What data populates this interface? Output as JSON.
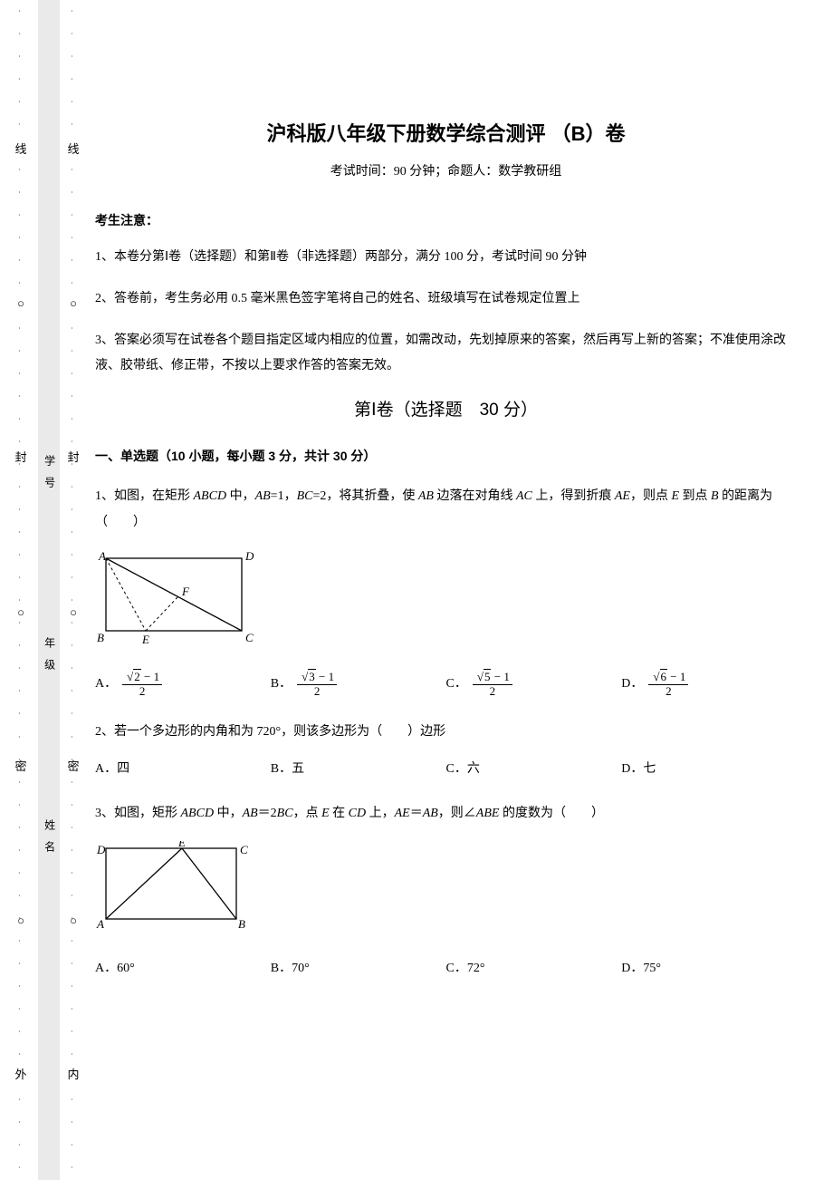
{
  "margin": {
    "outer_chars": [
      "线",
      "○",
      "封",
      "○",
      "密",
      "○",
      "外"
    ],
    "inner_chars": [
      "线",
      "○",
      "封",
      "○",
      "密",
      "○",
      "内"
    ],
    "gray_labels": [
      "学　号",
      "年　级",
      "姓　名"
    ]
  },
  "header": {
    "title": "沪科版八年级下册数学综合测评 （B）卷",
    "subtitle": "考试时间：90 分钟；命题人：数学教研组"
  },
  "notice": {
    "heading": "考生注意：",
    "items": [
      "1、本卷分第Ⅰ卷（选择题）和第Ⅱ卷（非选择题）两部分，满分 100 分，考试时间 90 分钟",
      "2、答卷前，考生务必用 0.5 毫米黑色签字笔将自己的姓名、班级填写在试卷规定位置上",
      "3、答案必须写在试卷各个题目指定区域内相应的位置，如需改动，先划掉原来的答案，然后再写上新的答案；不准使用涂改液、胶带纸、修正带，不按以上要求作答的答案无效。"
    ]
  },
  "section1": {
    "title": "第Ⅰ卷（选择题　30 分）",
    "subsection": "一、单选题（10 小题，每小题 3 分，共计 30 分）"
  },
  "q1": {
    "text_prefix": "1、如图，在矩形 ",
    "text_mid1": " 中，",
    "text_mid2": "=1，",
    "text_mid3": "=2，将其折叠，使 ",
    "text_mid4": " 边落在对角线 ",
    "text_mid5": " 上，得到折痕 ",
    "text_mid6": "，则点 ",
    "text_mid7": " 到点 ",
    "text_mid8": " 的距离为（　　）",
    "ABCD": "ABCD",
    "AB": "AB",
    "BC": "BC",
    "AC": "AC",
    "AE": "AE",
    "E": "E",
    "B": "B",
    "fig": {
      "A": "A",
      "B": "B",
      "C": "C",
      "D": "D",
      "E": "E",
      "F": "F"
    },
    "choices": {
      "A": "A．",
      "B": "B．",
      "C": "C．",
      "D": "D．",
      "nA": "2",
      "nB": "3",
      "nC": "5",
      "nD": "6",
      "minus1": " − 1",
      "den": "2"
    }
  },
  "q2": {
    "text": "2、若一个多边形的内角和为 720°，则该多边形为（　　）边形",
    "choices": {
      "A": "A．四",
      "B": "B．五",
      "C": "C．六",
      "D": "D．七"
    }
  },
  "q3": {
    "text_prefix": "3、如图，矩形 ",
    "text_mid1": " 中，",
    "text_mid2": "＝2",
    "text_mid3": "，点 ",
    "text_mid4": " 在 ",
    "text_mid5": " 上，",
    "text_mid6": "＝",
    "text_mid7": "，则∠",
    "text_mid8": " 的度数为（　　）",
    "ABCD": "ABCD",
    "AB": "AB",
    "BC": "BC",
    "E": "E",
    "CD": "CD",
    "AE": "AE",
    "ABE": "ABE",
    "fig": {
      "A": "A",
      "B": "B",
      "C": "C",
      "D": "D",
      "E": "E"
    },
    "choices": {
      "A": "A．60°",
      "B": "B．70°",
      "C": "C．72°",
      "D": "D．75°"
    }
  }
}
